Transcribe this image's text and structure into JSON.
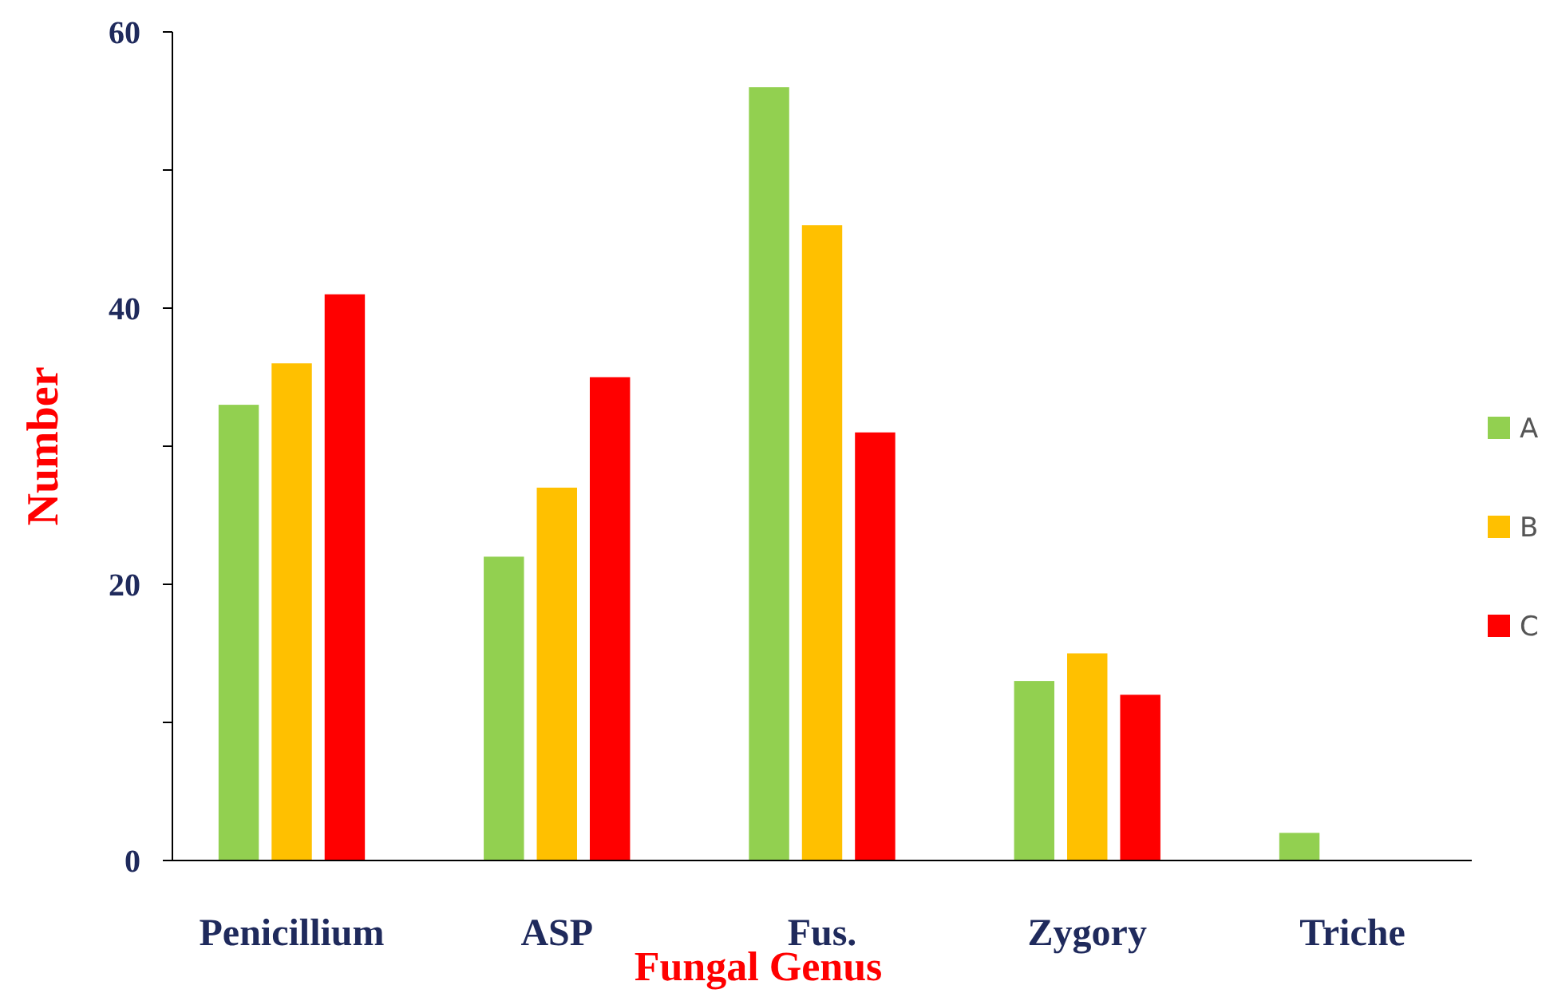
{
  "chart_data": {
    "type": "bar",
    "xlabel": "Fungal Genus",
    "ylabel": "Number",
    "categories": [
      "Penicillium",
      "ASP",
      "Fus.",
      "Zygory",
      "Triche"
    ],
    "series": [
      {
        "name": "A",
        "color": "#92d050",
        "values": [
          33,
          22,
          56,
          13,
          2
        ]
      },
      {
        "name": "B",
        "color": "#ffc000",
        "values": [
          36,
          27,
          46,
          15,
          null
        ]
      },
      {
        "name": "C",
        "color": "#ff0000",
        "values": [
          41,
          35,
          31,
          12,
          null
        ]
      }
    ],
    "ylim": [
      0,
      60
    ],
    "yticks": [
      0,
      {
        "value": 10,
        "label": null
      },
      20,
      {
        "value": 30,
        "label": null
      },
      40,
      {
        "value": 50,
        "label": null
      },
      60
    ],
    "legend": "right"
  }
}
